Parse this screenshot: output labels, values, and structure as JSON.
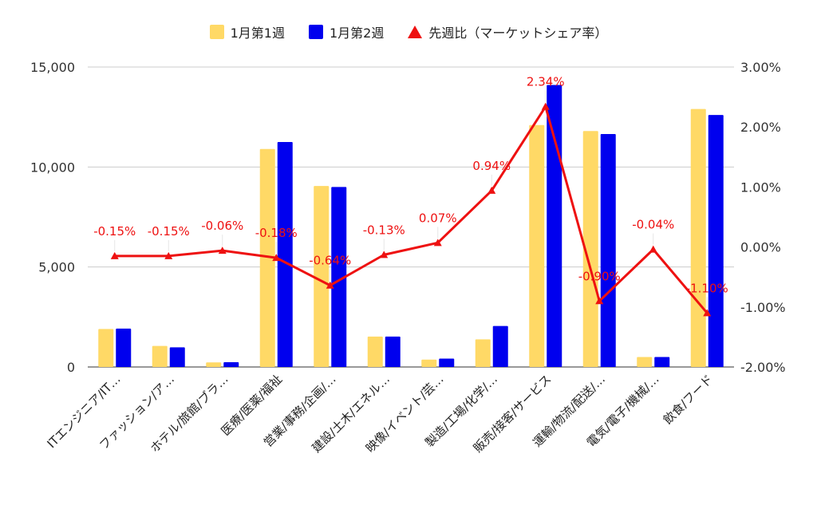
{
  "chart_data": {
    "type": "bar",
    "categories": [
      "ITエンジニア/IT…",
      "ファッション/ア…",
      "ホテル/旅館/ブラ…",
      "医療/医薬/福祉",
      "営業/事務/企画/…",
      "建設/土木/エネル…",
      "映像/イベント/芸…",
      "製造/工場/化学/…",
      "販売/接客/サービス",
      "運輸/物流/配送/…",
      "電気/電子/機械/…",
      "飲食/フード"
    ],
    "series": [
      {
        "name": "1月第1週",
        "type": "bar",
        "axis": "left",
        "color": "#ffd966",
        "values": [
          1900,
          1050,
          230,
          10900,
          9050,
          1520,
          370,
          1380,
          12100,
          11800,
          500,
          12900
        ]
      },
      {
        "name": "1月第2週",
        "type": "bar",
        "axis": "left",
        "color": "#0000ee",
        "values": [
          1920,
          980,
          240,
          11250,
          9000,
          1520,
          420,
          2050,
          14100,
          11650,
          500,
          12600
        ]
      },
      {
        "name": "先週比（マーケットシェア率）",
        "type": "line",
        "axis": "right",
        "color": "#ee1111",
        "values": [
          -0.15,
          -0.15,
          -0.06,
          -0.18,
          -0.64,
          -0.13,
          0.07,
          0.94,
          2.34,
          -0.9,
          -0.04,
          -1.1
        ],
        "labels": [
          "-0.15%",
          "-0.15%",
          "-0.06%",
          "-0.18%",
          "-0.64%",
          "-0.13%",
          "0.07%",
          "0.94%",
          "2.34%",
          "-0.90%",
          "-0.04%",
          "-1.10%"
        ]
      }
    ],
    "ylim": [
      0,
      15000
    ],
    "y_ticks": [
      "0",
      "5,000",
      "10,000",
      "15,000"
    ],
    "y2lim": [
      -2.0,
      3.0
    ],
    "y2_ticks": [
      "-2.00%",
      "-1.00%",
      "0.00%",
      "1.00%",
      "2.00%",
      "3.00%"
    ],
    "legend_position": "top",
    "grid": true
  }
}
